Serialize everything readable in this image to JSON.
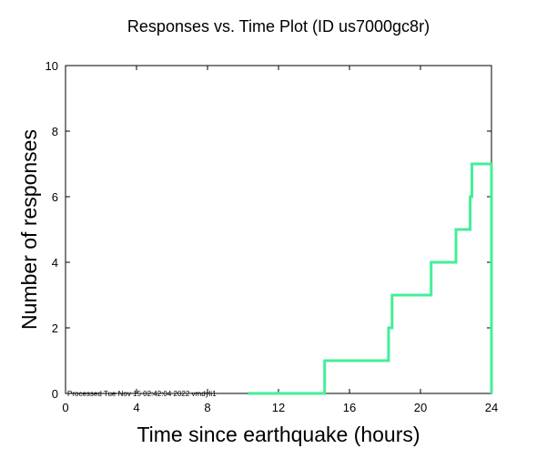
{
  "chart_data": {
    "type": "line",
    "step": true,
    "title": "Responses vs. Time Plot (ID us7000gc8r)",
    "xlabel": "Time since earthquake (hours)",
    "ylabel": "Number of responses",
    "xlim": [
      0,
      24
    ],
    "ylim": [
      0,
      10
    ],
    "xticks": [
      0,
      4,
      8,
      12,
      16,
      20,
      24
    ],
    "yticks": [
      0,
      2,
      4,
      6,
      8,
      10
    ],
    "series": [
      {
        "name": "responses",
        "color": "#44ee99",
        "x": [
          10.3,
          14.6,
          14.6,
          18.2,
          18.2,
          18.4,
          18.4,
          20.6,
          20.6,
          22.0,
          22.0,
          22.8,
          22.8,
          22.9,
          22.9,
          24.0,
          24.0
        ],
        "y": [
          0,
          0,
          1,
          1,
          2,
          2,
          3,
          3,
          4,
          4,
          5,
          5,
          6,
          6,
          7,
          7,
          0
        ]
      }
    ],
    "annotation": "Processed Tue Nov 15 02:42:04 2022 vmdyli1"
  }
}
